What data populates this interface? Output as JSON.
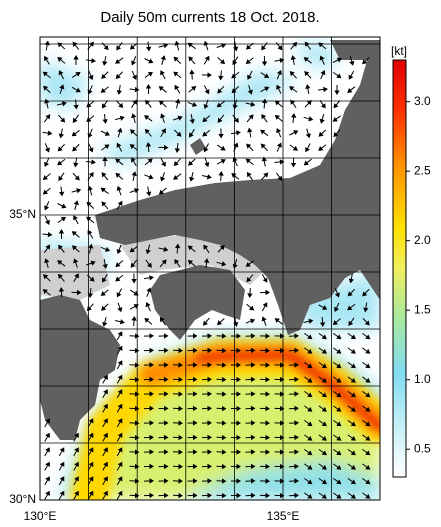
{
  "title": "Daily 50m currents 18 Oct. 2018.",
  "map": {
    "x_labels": [
      "130°E",
      "135°E"
    ],
    "y_labels": [
      "35°N",
      "30°N"
    ]
  },
  "colorbar": {
    "unit": "[kt]",
    "lim": [
      0.3,
      3.3
    ],
    "ticks": [
      0.5,
      {
        "value": 1,
        "label": "1.0"
      },
      1.5,
      {
        "value": 2,
        "label": "2.0"
      },
      2.5,
      {
        "value": 3,
        "label": "3.0"
      }
    ]
  }
}
